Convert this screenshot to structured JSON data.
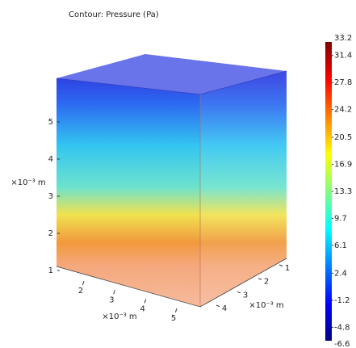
{
  "chart_data": {
    "type": "contour3d",
    "title": "Contour: Pressure (Pa)",
    "colorbar": {
      "ticks": [
        31.4,
        27.8,
        24.2,
        20.5,
        16.9,
        13.3,
        9.7,
        6.1,
        2.4,
        -1.2,
        -4.8
      ],
      "max": 33.2,
      "min": -6.6,
      "colormap": [
        "#00007f",
        "#0000ff",
        "#0080ff",
        "#00ffff",
        "#80ff80",
        "#ffff00",
        "#ff8000",
        "#ff0000",
        "#7f0000"
      ]
    },
    "z_axis": {
      "label": "×10⁻³ m",
      "ticks": [
        1,
        2,
        3,
        4,
        5
      ]
    },
    "x_axis": {
      "label": "×10⁻³ m",
      "ticks": [
        2,
        3,
        4,
        5
      ]
    },
    "y_axis": {
      "label": "×10⁻³ m",
      "ticks": [
        1,
        2,
        3,
        4
      ]
    }
  }
}
